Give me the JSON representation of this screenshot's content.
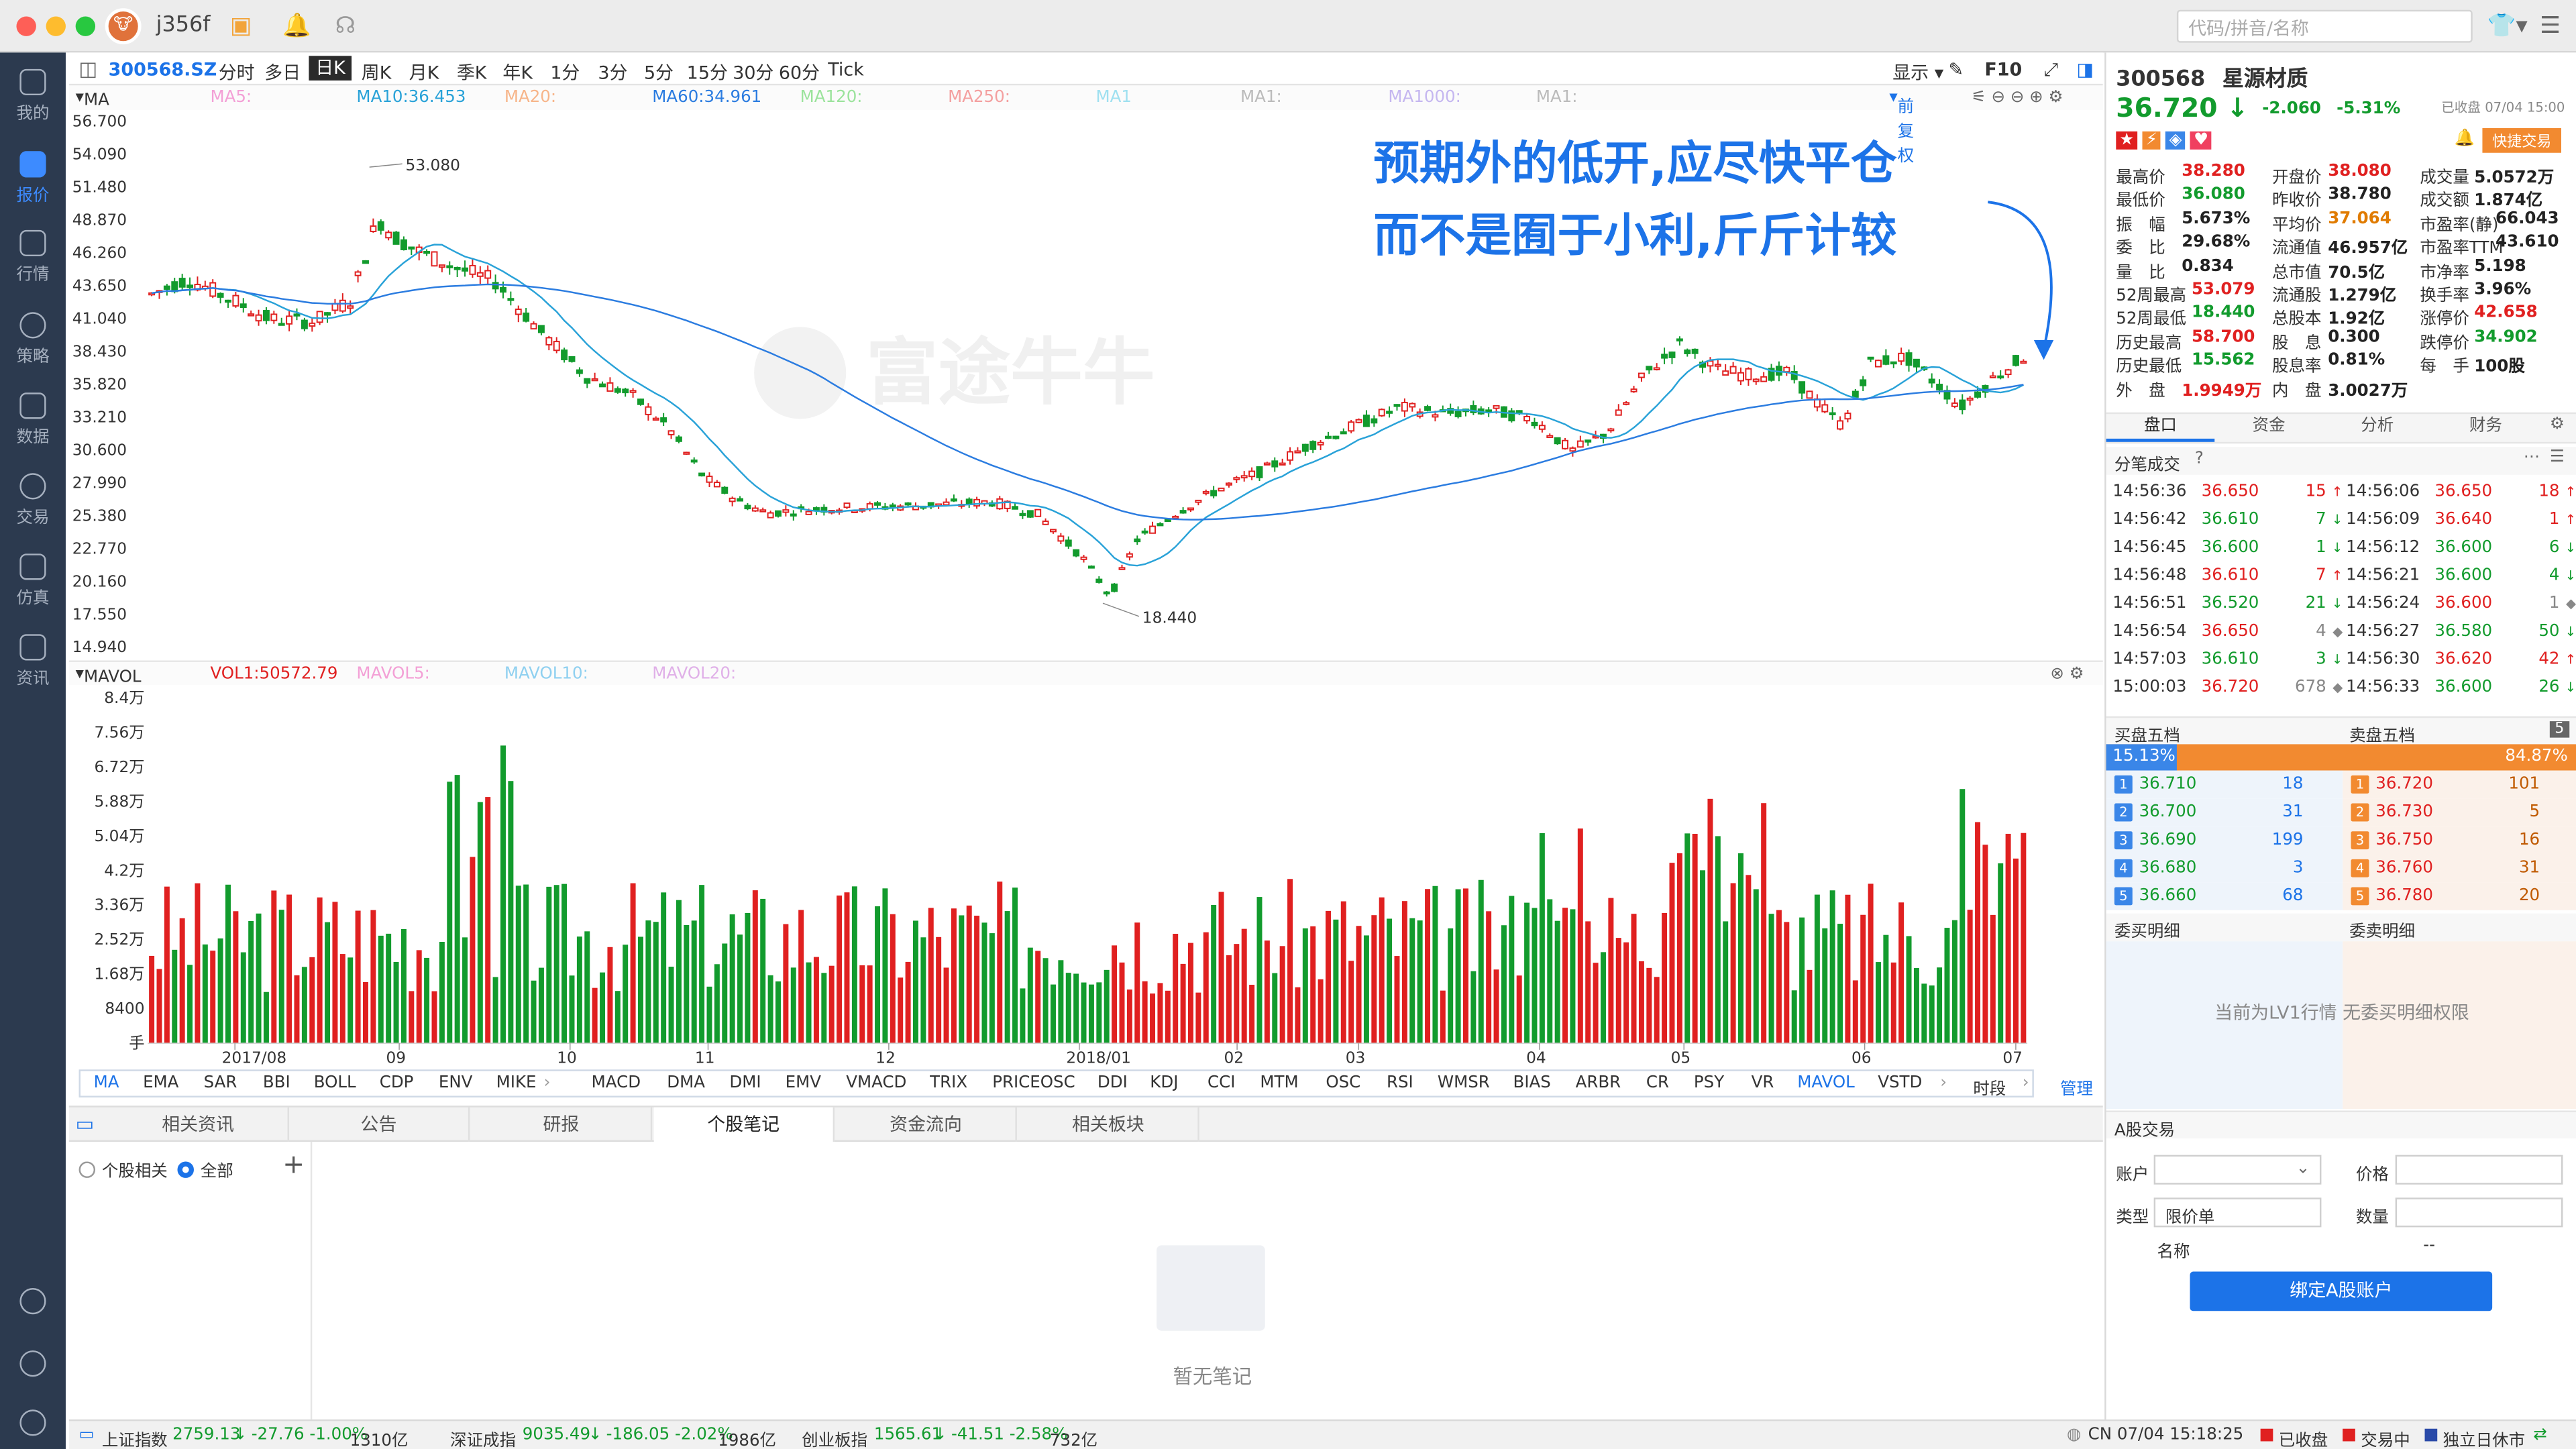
{
  "app": {
    "username": "j356f",
    "search_placeholder": "代码/拼音/名称"
  },
  "sidebar": {
    "items": [
      {
        "label": "我的"
      },
      {
        "label": "报价"
      },
      {
        "label": "行情"
      },
      {
        "label": "策略"
      },
      {
        "label": "数据"
      },
      {
        "label": "交易"
      },
      {
        "label": "仿真"
      },
      {
        "label": "资讯"
      }
    ]
  },
  "chart_header": {
    "code": "300568.SZ",
    "periods": [
      "分时",
      "多日",
      "日K",
      "周K",
      "月K",
      "季K",
      "年K",
      "1分",
      "3分",
      "5分",
      "15分",
      "30分",
      "60分",
      "Tick"
    ],
    "selected": "日K",
    "display": "显示",
    "f10": "F10"
  },
  "ma_legend": {
    "title": "MA",
    "items": [
      {
        "label": "MA5:",
        "color": "#f3a0d6"
      },
      {
        "label": "MA10:36.453",
        "color": "#29a2d8"
      },
      {
        "label": "MA20:",
        "color": "#f7b58a"
      },
      {
        "label": "MA60:34.961",
        "color": "#2b7ce0"
      },
      {
        "label": "MA120:",
        "color": "#9be39c"
      },
      {
        "label": "MA250:",
        "color": "#f4a0a0"
      },
      {
        "label": "MA1",
        "color": "#9fe0f0"
      },
      {
        "label": "MA1:",
        "color": "#bbbbbb"
      },
      {
        "label": "MA1000:",
        "color": "#c5b7f0"
      },
      {
        "label": "MA1:",
        "color": "#bbbbbb"
      }
    ],
    "restore": "前复权"
  },
  "annotation": {
    "line1": "预期外的低开,应尽快平仓",
    "line2": "而不是囿于小利,斤斤计较",
    "watermark": "富途牛牛"
  },
  "chart_data": {
    "type": "candlestick",
    "y_ticks": [
      "56.700",
      "54.090",
      "51.480",
      "48.870",
      "46.260",
      "43.650",
      "41.040",
      "38.430",
      "35.820",
      "33.210",
      "30.600",
      "27.990",
      "25.380",
      "22.770",
      "20.160",
      "17.550",
      "14.940"
    ],
    "ylim": [
      14.94,
      56.7
    ],
    "x_ticks": [
      "2017/08",
      "09",
      "10",
      "11",
      "12",
      "2018/01",
      "02",
      "03",
      "04",
      "05",
      "06",
      "07"
    ],
    "high_label": "53.080",
    "low_label": "18.440",
    "volume": {
      "title": "MAVOL",
      "legend": [
        {
          "label": "VOL1:50572.79",
          "color": "#e02020"
        },
        {
          "label": "MAVOL5:",
          "color": "#f3a0d6"
        },
        {
          "label": "MAVOL10:",
          "color": "#8fd0f0"
        },
        {
          "label": "MAVOL20:",
          "color": "#e0b0e8"
        }
      ],
      "y_ticks": [
        "8.4万",
        "7.56万",
        "6.72万",
        "5.88万",
        "5.04万",
        "4.2万",
        "3.36万",
        "2.52万",
        "1.68万",
        "8400",
        "手"
      ]
    }
  },
  "indicators": {
    "items": [
      "MA",
      "EMA",
      "SAR",
      "BBI",
      "BOLL",
      "CDP",
      "ENV",
      "MIKE",
      "MACD",
      "DMA",
      "DMI",
      "EMV",
      "VMACD",
      "TRIX",
      "PRICEOSC",
      "DDI",
      "KDJ",
      "CCI",
      "MTM",
      "OSC",
      "RSI",
      "WMSR",
      "BIAS",
      "ARBR",
      "CR",
      "PSY",
      "VR",
      "MAVOL",
      "VSTD",
      "时段"
    ],
    "manage": "管理"
  },
  "bottom_tabs": {
    "items": [
      "相关资讯",
      "公告",
      "研报",
      "个股笔记",
      "资金流向",
      "相关板块"
    ],
    "selected": "个股笔记",
    "filter_stock": "个股相关",
    "filter_all": "全部",
    "empty": "暂无笔记"
  },
  "status_bar": {
    "sh": {
      "name": "上证指数",
      "value": "2759.13",
      "change": "-27.76 -1.00%",
      "amount": "1310亿"
    },
    "sz": {
      "name": "深证成指",
      "value": "9035.49",
      "change": "-186.05 -2.02%",
      "amount": "1986亿"
    },
    "cy": {
      "name": "创业板指",
      "value": "1565.61",
      "change": "-41.51 -2.58%",
      "amount": "732亿"
    },
    "time": "CN 07/04 15:18:25",
    "flags": [
      "已收盘",
      "交易中",
      "独立日休市"
    ]
  },
  "quote": {
    "code": "300568",
    "name": "星源材质",
    "price": "36.720",
    "change": "-2.060",
    "pct": "-5.31%",
    "closed_time": "已收盘 07/04 15:00",
    "fast_trade": "快捷交易",
    "stats": [
      [
        "最高价",
        "38.280",
        "开盘价",
        "38.080",
        "成交量",
        "5.0572万"
      ],
      [
        "最低价",
        "36.080",
        "昨收价",
        "38.780",
        "成交额",
        "1.874亿"
      ],
      [
        "振　幅",
        "5.673%",
        "平均价",
        "37.064",
        "市盈率(静)",
        "66.043"
      ],
      [
        "委　比",
        "29.68%",
        "流通值",
        "46.957亿",
        "市盈率TTM",
        "43.610"
      ],
      [
        "量　比",
        "0.834",
        "总市值",
        "70.5亿",
        "市净率",
        "5.198"
      ],
      [
        "52周最高",
        "53.079",
        "流通股",
        "1.279亿",
        "换手率",
        "3.96%"
      ],
      [
        "52周最低",
        "18.440",
        "总股本",
        "1.92亿",
        "涨停价",
        "42.658"
      ],
      [
        "历史最高",
        "58.700",
        "股　息",
        "0.300",
        "跌停价",
        "34.902"
      ],
      [
        "历史最低",
        "15.562",
        "股息率",
        "0.81%",
        "每　手",
        "100股"
      ],
      [
        "外　盘",
        "1.9949万",
        "内　盘",
        "3.0027万",
        "",
        ""
      ]
    ],
    "tabs": [
      "盘口",
      "资金",
      "分析",
      "财务"
    ],
    "trades_title": "分笔成交",
    "trades_left": [
      [
        "14:56:36",
        "36.650",
        "15",
        "up"
      ],
      [
        "14:56:42",
        "36.610",
        "7",
        "down"
      ],
      [
        "14:56:45",
        "36.600",
        "1",
        "down"
      ],
      [
        "14:56:48",
        "36.610",
        "7",
        "up"
      ],
      [
        "14:56:51",
        "36.520",
        "21",
        "down"
      ],
      [
        "14:56:54",
        "36.650",
        "4",
        "flat"
      ],
      [
        "14:57:03",
        "36.610",
        "3",
        "down"
      ],
      [
        "15:00:03",
        "36.720",
        "678",
        "flat"
      ]
    ],
    "trades_right": [
      [
        "14:56:06",
        "36.650",
        "18",
        "up"
      ],
      [
        "14:56:09",
        "36.640",
        "1",
        "up"
      ],
      [
        "14:56:12",
        "36.600",
        "6",
        "down"
      ],
      [
        "14:56:21",
        "36.600",
        "4",
        "down"
      ],
      [
        "14:56:24",
        "36.600",
        "1",
        "flat"
      ],
      [
        "14:56:27",
        "36.580",
        "50",
        "down"
      ],
      [
        "14:56:30",
        "36.620",
        "42",
        "up"
      ],
      [
        "14:56:33",
        "36.600",
        "26",
        "down"
      ]
    ],
    "book_buy_title": "买盘五档",
    "book_sell_title": "卖盘五档",
    "book_count": "5",
    "buy_pct": "15.13%",
    "sell_pct": "84.87%",
    "bids": [
      [
        "1",
        "36.710",
        "18"
      ],
      [
        "2",
        "36.700",
        "31"
      ],
      [
        "3",
        "36.690",
        "199"
      ],
      [
        "4",
        "36.680",
        "3"
      ],
      [
        "5",
        "36.660",
        "68"
      ]
    ],
    "asks": [
      [
        "1",
        "36.720",
        "101"
      ],
      [
        "2",
        "36.730",
        "5"
      ],
      [
        "3",
        "36.750",
        "16"
      ],
      [
        "4",
        "36.760",
        "31"
      ],
      [
        "5",
        "36.780",
        "20"
      ]
    ],
    "detail_buy": "委买明细",
    "detail_sell": "委卖明细",
    "lv1_notice": "当前为LV1行情 无委买明细权限",
    "trade_title": "A股交易",
    "account_label": "账户",
    "price_label": "价格",
    "type_label": "类型",
    "type_value": "限价单",
    "qty_label": "数量",
    "name_label": "名称",
    "name_value": "--",
    "bind_button": "绑定A股账户"
  }
}
